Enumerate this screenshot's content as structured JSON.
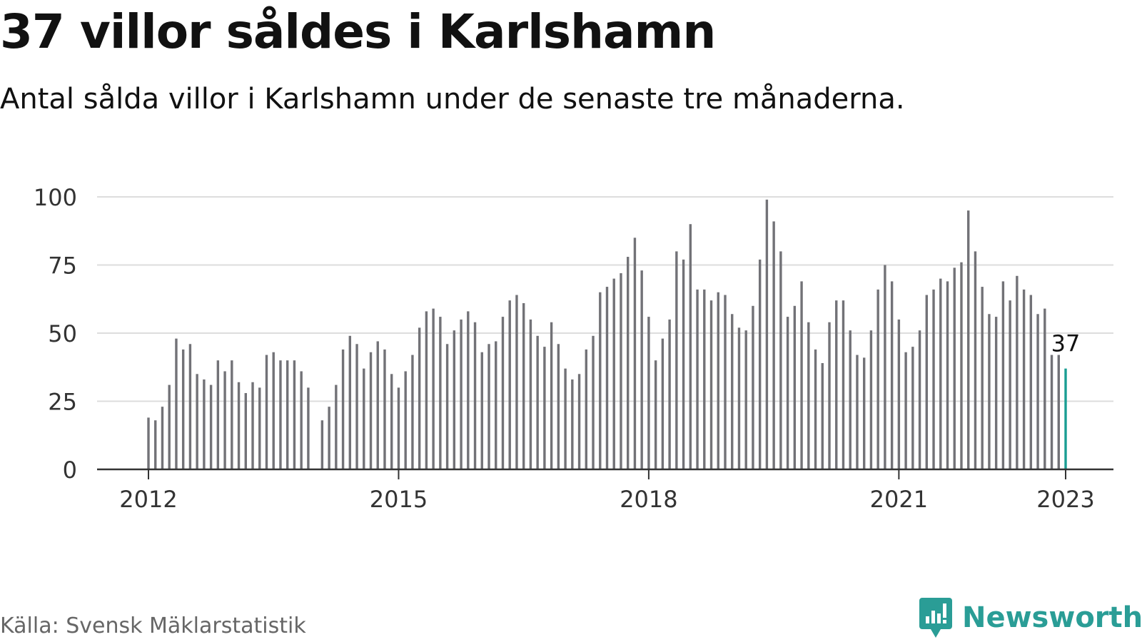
{
  "title": "37 villor såldes i Karlshamn",
  "subtitle": "Antal sålda villor i Karlshamn under de senaste tre månaderna.",
  "source": "Källa: Svensk Mäklarstatistik",
  "brand": {
    "name": "Newsworthy",
    "logo_icon": "chart-speech-bubble-icon"
  },
  "colors": {
    "bar": "#727277",
    "highlight": "#1a9e93",
    "grid": "#dddddd",
    "axis": "#333333",
    "brand": "#2a9d96"
  },
  "chart_data": {
    "type": "bar",
    "title": "37 villor såldes i Karlshamn",
    "subtitle": "Antal sålda villor i Karlshamn under de senaste tre månaderna.",
    "xlabel": "",
    "ylabel": "",
    "ylim": [
      0,
      100
    ],
    "yticks": [
      0,
      25,
      50,
      75,
      100
    ],
    "xticks": [
      "2012",
      "2015",
      "2018",
      "2021",
      "2023"
    ],
    "grid": true,
    "x_start_year": 2012,
    "x_end_year": 2023,
    "values": [
      19,
      18,
      23,
      31,
      48,
      44,
      46,
      35,
      33,
      31,
      40,
      36,
      40,
      32,
      28,
      32,
      30,
      42,
      43,
      40,
      40,
      40,
      36,
      30,
      null,
      18,
      23,
      31,
      44,
      49,
      46,
      37,
      43,
      47,
      44,
      35,
      30,
      36,
      42,
      52,
      58,
      59,
      56,
      46,
      51,
      55,
      58,
      54,
      43,
      46,
      47,
      56,
      62,
      64,
      61,
      55,
      49,
      45,
      54,
      46,
      37,
      33,
      35,
      44,
      49,
      65,
      67,
      70,
      72,
      78,
      85,
      73,
      56,
      40,
      48,
      55,
      80,
      77,
      90,
      66,
      66,
      62,
      65,
      64,
      57,
      52,
      51,
      60,
      77,
      99,
      91,
      80,
      56,
      60,
      69,
      54,
      44,
      39,
      54,
      62,
      62,
      51,
      42,
      41,
      51,
      66,
      75,
      69,
      55,
      43,
      45,
      51,
      64,
      66,
      70,
      69,
      74,
      76,
      95,
      80,
      67,
      57,
      56,
      69,
      62,
      71,
      66,
      64,
      57,
      59,
      42,
      42,
      37
    ],
    "highlight_label": "37"
  }
}
